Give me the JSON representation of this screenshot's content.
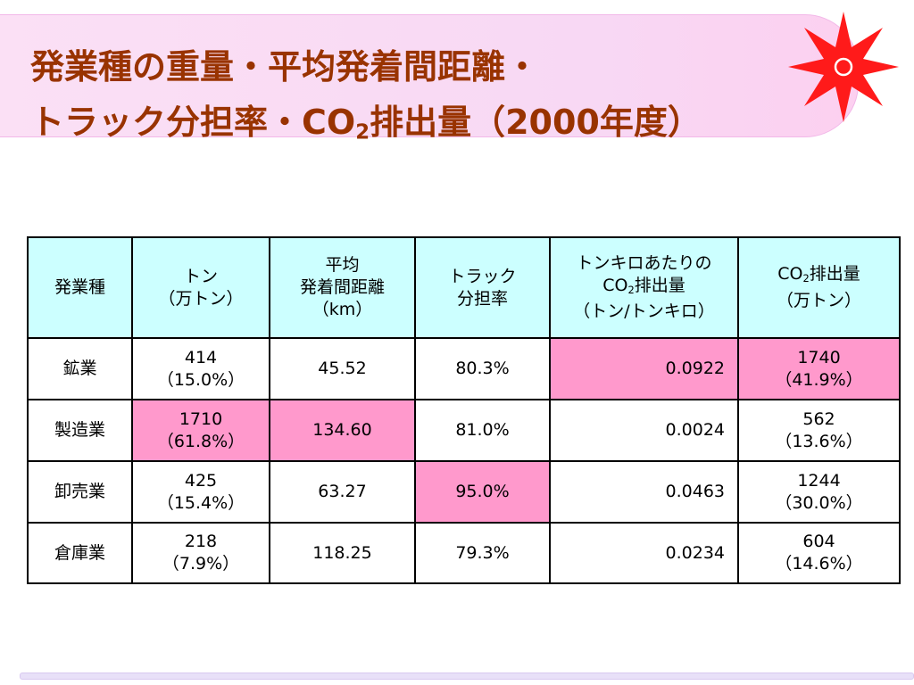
{
  "title": {
    "lines": [
      "発業種の重量・平均発着間距離・",
      {
        "before": "トラック分担率・CO",
        "sub": "2",
        "after": "排出量（2000年度）"
      }
    ],
    "color": "#993300"
  },
  "table": {
    "header_color": "#ccffff",
    "highlight_color": "#ff99cc",
    "header": [
      [
        "発業種"
      ],
      [
        "トン",
        "（万トン）"
      ],
      [
        "平均",
        "発着間距離",
        "（km）"
      ],
      [
        "トラック",
        "分担率"
      ],
      [
        "トンキロあたりの",
        {
          "before": "CO",
          "sub": "2",
          "after": "排出量"
        },
        "（トン/トンキロ）"
      ],
      [
        {
          "before": "CO",
          "sub": "2",
          "after": "排出量"
        },
        "（万トン）"
      ]
    ],
    "rows": [
      [
        {
          "text": [
            "鉱業"
          ],
          "highlighted": false
        },
        {
          "text": [
            "414",
            "（15.0%）"
          ],
          "highlighted": false
        },
        {
          "text": [
            "45.52"
          ],
          "highlighted": false
        },
        {
          "text": [
            "80.3%"
          ],
          "highlighted": false
        },
        {
          "text": [
            "0.0922"
          ],
          "highlighted": true
        },
        {
          "text": [
            "1740",
            "（41.9%）"
          ],
          "highlighted": true
        }
      ],
      [
        {
          "text": [
            "製造業"
          ],
          "highlighted": false
        },
        {
          "text": [
            "1710",
            "（61.8%）"
          ],
          "highlighted": true
        },
        {
          "text": [
            "134.60"
          ],
          "highlighted": true
        },
        {
          "text": [
            "81.0%"
          ],
          "highlighted": false
        },
        {
          "text": [
            "0.0024"
          ],
          "highlighted": false
        },
        {
          "text": [
            "562",
            "（13.6%）"
          ],
          "highlighted": false
        }
      ],
      [
        {
          "text": [
            "卸売業"
          ],
          "highlighted": false
        },
        {
          "text": [
            "425",
            "（15.4%）"
          ],
          "highlighted": false
        },
        {
          "text": [
            "63.27"
          ],
          "highlighted": false
        },
        {
          "text": [
            "95.0%"
          ],
          "highlighted": true
        },
        {
          "text": [
            "0.0463"
          ],
          "highlighted": false
        },
        {
          "text": [
            "1244",
            "（30.0%）"
          ],
          "highlighted": false
        }
      ],
      [
        {
          "text": [
            "倉庫業"
          ],
          "highlighted": false
        },
        {
          "text": [
            "218",
            "（7.9%）"
          ],
          "highlighted": false
        },
        {
          "text": [
            "118.25"
          ],
          "highlighted": false
        },
        {
          "text": [
            "79.3%"
          ],
          "highlighted": false
        },
        {
          "text": [
            "0.0234"
          ],
          "highlighted": false
        },
        {
          "text": [
            "604",
            "（14.6%）"
          ],
          "highlighted": false
        }
      ]
    ]
  }
}
